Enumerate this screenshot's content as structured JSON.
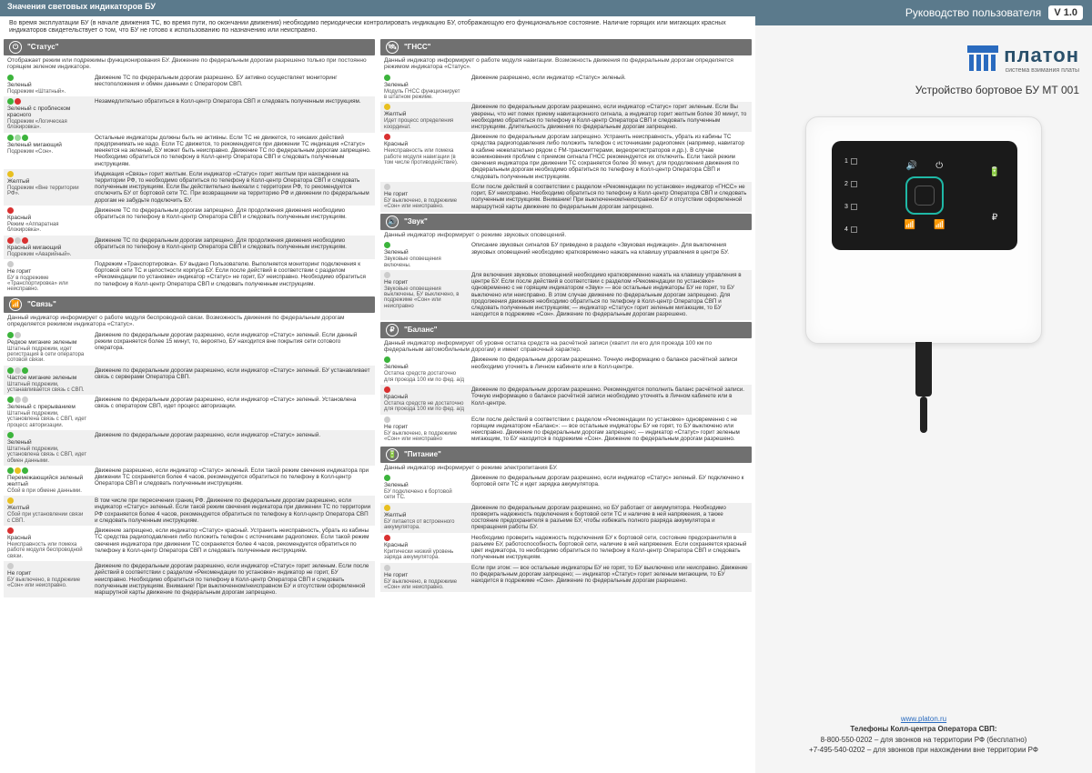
{
  "header": "Значения световых индикаторов БУ",
  "intro": "Во время эксплуатации БУ (в начале движения ТС, во время пути, по окончании движения) необходимо периодически контролировать индикацию БУ, отображающую его функциональное состояние. Наличие горящих или мигающих красных индикаторов свидетельствует о том, что БУ не готово к использованию по назначению или неисправно.",
  "colors": {
    "green": "#3cb43c",
    "red": "#d93030",
    "yellow": "#e8c020",
    "off": "#cccccc",
    "orange": "#e88b20",
    "hdr_bg": "#707070",
    "top_bg": "#5b7a8c"
  },
  "sections_col1": [
    {
      "icon": "⏻",
      "title": "\"Статус\"",
      "intro": "Отображает режим или подрежимы функционирования БУ. Движение по федеральным дорогам разрешено только при постоянно горящем зеленом индикаторе.",
      "rows": [
        {
          "dots": [
            "c-green"
          ],
          "label": "Зеленый",
          "sub": "Подрежим «Штатный».",
          "desc": "Движение ТС по федеральным дорогам разрешено. БУ активно осуществляет мониторинг местоположения и обмен данными с Оператором СВП."
        },
        {
          "dots": [
            "c-green",
            "c-red"
          ],
          "label": "Зеленый с проблеском красного",
          "sub": "Подрежим «Логическая блокировка».",
          "desc": "Незамедлительно обратиться в Колл-центр Оператора СВП и следовать полученным инструкциям.",
          "alt": true
        },
        {
          "dots": [
            "c-green",
            "c-greenb",
            "c-green"
          ],
          "label": "Зеленый мигающий",
          "sub": "Подрежим «Сон».",
          "desc": "Остальные индикаторы должны быть не активны. Если ТС не движется, то никаких действий предпринимать не надо. Если ТС движется, то рекомендуется при движении ТС индикация «Статус» меняется на зеленый, БУ может быть неисправно. Движение ТС по федеральным дорогам запрещено. Необходимо обратиться по телефону в Колл-центр Оператора СВП и следовать полученным инструкциям."
        },
        {
          "dots": [
            "c-yellow"
          ],
          "label": "Желтый",
          "sub": "Подрежим «Вне территории РФ».",
          "desc": "Индикация «Связь» горит желтым. Если индикатор «Статус» горит желтым при нахождении на территории РФ, то необходимо обратиться по телефону в Колл-центр Оператора СВП и следовать полученным инструкциям. Если Вы действительно выехали с территории РФ, то рекомендуется отключить БУ от бортовой сети ТС. При возвращении на территорию РФ и движении по федеральным дорогам не забудьте подключить БУ.",
          "alt": true
        },
        {
          "dots": [
            "c-red"
          ],
          "label": "Красный",
          "sub": "Режим «Аппаратная блокировка».",
          "desc": "Движение ТС по федеральным дорогам запрещено. Для продолжения движения необходимо обратиться по телефону в Колл-центр Оператора СВП и следовать полученным инструкциям."
        },
        {
          "dots": [
            "c-red",
            "c-off",
            "c-red"
          ],
          "label": "Красный мигающий",
          "sub": "Подрежим «Аварийный».",
          "desc": "Движение ТС по федеральным дорогам запрещено. Для продолжения движения необходимо обратиться по телефону в Колл-центр Оператора СВП и следовать полученным инструкциям.",
          "alt": true
        },
        {
          "dots": [
            "c-off"
          ],
          "label": "Не горит",
          "sub": "БУ в подрежиме «Транспортировка» или неисправно.",
          "desc": "Подрежим «Транспортировка». БУ выдано Пользователю. Выполняется мониторинг подключения к бортовой сети ТС и целостности корпуса БУ. Если после действий в соответствии с разделом «Рекомендации по установке» индикатор «Статус» не горит, БУ неисправно. Необходимо обратиться по телефону в Колл-центр Оператора СВП и следовать полученным инструкциям."
        }
      ]
    },
    {
      "icon": "📶",
      "title": "\"Связь\"",
      "intro": "Данный индикатор информирует о работе модуля беспроводной связи. Возможность движения по федеральным дорогам определяется режимом индикатора «Статус».",
      "rows": [
        {
          "dots": [
            "c-green",
            "c-off"
          ],
          "label": "Редкое мигание зеленым",
          "sub": "Штатный подрежим, идет регистрация в сети оператора сотовой связи.",
          "desc": "Движение по федеральным дорогам разрешено, если индикатор «Статус» зеленый. Если данный режим сохраняется более 15 минут, то, вероятно, БУ находится вне покрытия сети сотового оператора."
        },
        {
          "dots": [
            "c-green",
            "c-off",
            "c-green"
          ],
          "label": "Частое мигание зеленым",
          "sub": "Штатный подрежим, устанавливается связь с СВП.",
          "desc": "Движение по федеральным дорогам разрешено, если индикатор «Статус» зеленый. БУ устанавливает связь с серверами Оператора СВП.",
          "alt": true
        },
        {
          "dots": [
            "c-green",
            "c-off",
            "c-off"
          ],
          "label": "Зеленый с прерыванием",
          "sub": "Штатный подрежим, установлена связь с СВП, идет процесс авторизации.",
          "desc": "Движение по федеральным дорогам разрешено, если индикатор «Статус» зеленый. Установлена связь с оператором СВП, идет процесс авторизации."
        },
        {
          "dots": [
            "c-green"
          ],
          "label": "Зеленый",
          "sub": "Штатный подрежим, установлена связь с СВП, идет обмен данными.",
          "desc": "Движение по федеральным дорогам разрешено, если индикатор «Статус» зеленый.",
          "alt": true
        },
        {
          "dots": [
            "c-green",
            "c-yellow",
            "c-green"
          ],
          "label": "Перемежающийся зеленый желтый",
          "sub": "Сбой в при обмене данными.",
          "desc": "Движение разрешено, если индикатор «Статус» зеленый. Если такой режим свечения индикатора при движении ТС сохраняется более 4 часов, рекомендуется обратиться по телефону в Колл-центр Оператора СВП и следовать полученным инструкциям."
        },
        {
          "dots": [
            "c-yellow"
          ],
          "label": "Желтый",
          "sub": "Сбой при установлении связи с СВП.",
          "desc": "В том числе при пересечении границ РФ. Движение по федеральным дорогам разрешено, если индикатор «Статус» зеленый. Если такой режим свечения индикатора при движении ТС по территории РФ сохраняется более 4 часов, рекомендуется обратиться по телефону в Колл-центр Оператора СВП и следовать полученным инструкциям.",
          "alt": true
        },
        {
          "dots": [
            "c-red"
          ],
          "label": "Красный",
          "sub": "Неисправность или помеха работе модуля беспроводной связи.",
          "desc": "Движение запрещено, если индикатор «Статус» красный. Устранить неисправность, убрать из кабины ТС средства радиоподавления либо положить телефон с источниками радиопомех. Если такой режим свечения индикатора при движении ТС сохраняется более 4 часов, рекомендуется обратиться по телефону в Колл-центр Оператора СВП и следовать полученным инструкциям."
        },
        {
          "dots": [
            "c-off"
          ],
          "label": "Не горит",
          "sub": "БУ выключено, в подрежиме «Сон» или неисправно.",
          "desc": "Движение по федеральным дорогам разрешено, если индикатор «Статус» горит зеленым. Если после действий в соответствии с разделом «Рекомендации по установке» индикатор не горит, БУ неисправно. Необходимо обратиться по телефону в Колл-центр Оператора СВП и следовать полученным инструкциям. Внимание! При выключенном/неисправном БУ и отсутствии оформленной маршрутной карты движение по федеральным дорогам запрещено.",
          "alt": true
        }
      ]
    }
  ],
  "sections_col2": [
    {
      "icon": "🛰",
      "title": "\"ГНСС\"",
      "intro": "Данный индикатор информирует о работе модуля навигации. Возможность движения по федеральным дорогам определяется режимом индикатора «Статус».",
      "rows": [
        {
          "dots": [
            "c-green"
          ],
          "label": "Зеленый",
          "sub": "Модуль ГНСС функционирует в штатном режиме.",
          "desc": "Движение разрешено, если индикатор «Статус» зеленый."
        },
        {
          "dots": [
            "c-yellow"
          ],
          "label": "Желтый",
          "sub": "Идет процесс определения координат.",
          "desc": "Движение по федеральным дорогам разрешено, если индикатор «Статус» горит зеленым. Если Вы уверены, что нет помех приему навигационного сигнала, а индикатор горит желтым более 30 минут, то необходимо обратиться по телефону в Колл-центр Оператора СВП и следовать полученным инструкциям. Длительность движения по федеральным дорогам запрещено.",
          "alt": true
        },
        {
          "dots": [
            "c-red"
          ],
          "label": "Красный",
          "sub": "Неисправность или помеха работе модуля навигации (в том числе противодействие).",
          "desc": "Движение по федеральным дорогам запрещено. Устранить неисправность, убрать из кабины ТС средства радиоподавления либо положить телефон с источниками радиопомех (например, навигатор в кабине нежелательно рядом с FM-трансмиттерами, видеорегистраторов и др.). В случае возникновения проблем с приемом сигнала ГНСС рекомендуется их отключить. Если такой режим свечения индикатора при движении ТС сохраняется более 30 минут, для продолжения движения по федеральным дорогам необходимо обратиться по телефону в Колл-центр Оператора СВП и следовать полученным инструкциям."
        },
        {
          "dots": [
            "c-off"
          ],
          "label": "Не горит",
          "sub": "БУ выключено, в подрежиме «Сон» или неисправно.",
          "desc": "Если после действий в соответствии с разделом «Рекомендации по установке» индикатор «ГНСС» не горит, БУ неисправно. Необходимо обратиться по телефону в Колл-центр Оператора СВП и следовать полученным инструкциям. Внимание! При выключенном/неисправном БУ и отсутствии оформленной маршрутной карты движение по федеральным дорогам запрещено.",
          "alt": true
        }
      ]
    },
    {
      "icon": "🔊",
      "title": "\"Звук\"",
      "intro": "Данный индикатор информирует о режиме звуковых оповещений.",
      "rows": [
        {
          "dots": [
            "c-green"
          ],
          "label": "Зеленый",
          "sub": "Звуковые оповещения включены.",
          "desc": "Описание звуковых сигналов БУ приведено в разделе «Звуковая индикация». Для выключения звуковых оповещений необходимо кратковременно нажать на клавишу управления в центре БУ."
        },
        {
          "dots": [
            "c-off"
          ],
          "label": "Не горит",
          "sub": "Звуковые оповещения выключены, БУ выключено, в подрежиме «Сон» или неисправно",
          "desc": "Для включения звуковых оповещений необходимо кратковременно нажать на клавишу управления в центре БУ. Если после действий в соответствии с разделом «Рекомендации по установке» одновременно с не горящим индикатором «Звук» — все остальные индикаторы БУ не горят, то БУ выключено или неисправно. В этом случае движение по федеральным дорогам запрещено. Для продолжения движения необходимо обратиться по телефону в Колл-центр Оператора СВП и следовать полученным инструкциям; — индикатор «Статус» горит зеленым мигающим, то БУ находится в подрежиме «Сон». Движение по федеральным дорогам разрешено.",
          "alt": true
        }
      ]
    },
    {
      "icon": "₽",
      "title": "\"Баланс\"",
      "intro": "Данный индикатор информирует об уровне остатка средств на расчётной записи (хватит ли его для проезда 100 км по федеральным автомобильным дорогам) и имеет справочный характер.",
      "rows": [
        {
          "dots": [
            "c-green"
          ],
          "label": "Зеленый",
          "sub": "Остатка средств достаточно для проезда 100 км по фед. а/д",
          "desc": "Движение по федеральным дорогам разрешено. Точную информацию о балансе расчётной записи необходимо уточнять в Личном кабинете или в Колл-центре."
        },
        {
          "dots": [
            "c-red"
          ],
          "label": "Красный",
          "sub": "Остатка средств не достаточно для проезда 100 км по фед. а/д",
          "desc": "Движение по федеральным дорогам разрешено. Рекомендуется пополнить баланс расчётной записи. Точную информацию о балансе расчётной записи необходимо уточнять в Личном кабинете или в Колл-центре.",
          "alt": true
        },
        {
          "dots": [
            "c-off"
          ],
          "label": "Не горит",
          "sub": "БУ выключено, в подрежиме «Сон» или неисправно",
          "desc": "Если после действий в соответствии с разделом «Рекомендации по установке» одновременно с не горящим индикатором «Баланс»: — все остальные индикаторы БУ не горят, то БУ выключено или неисправно. Движение по федеральным дорогам запрещено; — индикатор «Статус» горит зеленым мигающим, то БУ находится в подрежиме «Сон». Движение по федеральным дорогам разрешено."
        }
      ]
    },
    {
      "icon": "🔋",
      "title": "\"Питание\"",
      "intro": "Данный индикатор информирует о режиме электропитания БУ.",
      "rows": [
        {
          "dots": [
            "c-green"
          ],
          "label": "Зеленый",
          "sub": "БУ подключено к бортовой сети ТС.",
          "desc": "Движение по федеральным дорогам разрешено, если индикатор «Статус» зеленый. БУ подключено к бортовой сети ТС и идет зарядка аккумулятора."
        },
        {
          "dots": [
            "c-yellow"
          ],
          "label": "Желтый",
          "sub": "БУ питается от встроенного аккумулятора.",
          "desc": "Движение по федеральным дорогам разрешено, но БУ работает от аккумулятора. Необходимо проверить надежность подключения к бортовой сети ТС и наличие в ней напряжения, а также состояние предохранителя в разъеме БУ, чтобы избежать полного разряда аккумулятора и прекращения работы БУ.",
          "alt": true
        },
        {
          "dots": [
            "c-red"
          ],
          "label": "Красный",
          "sub": "Критически низкий уровень заряда аккумулятора.",
          "desc": "Необходимо проверить надежность подключения БУ к бортовой сети, состояние предохранителя в разъеме БУ, работоспособность бортовой сети, наличие в ней напряжения. Если сохраняется красный цвет индикатора, то необходимо обратиться по телефону в Колл-центр Оператора СВП и следовать полученным инструкциям."
        },
        {
          "dots": [
            "c-off"
          ],
          "label": "Не горит",
          "sub": "БУ выключено, в подрежиме «Сон» или неисправно.",
          "desc": "Если при этом: — все остальные индикаторы БУ не горят, то БУ выключено или неисправно. Движение по федеральным дорогам запрещено; — индикатор «Статус» горит зеленым мигающим, то БУ находится в подрежиме «Сон». Движение по федеральным дорогам разрешено.",
          "alt": true
        }
      ]
    }
  ],
  "right": {
    "header_title": "Руководство пользователя",
    "version": "V 1.0",
    "logo_text": "платон",
    "logo_sub": "система взимания платы",
    "device_title": "Устройство бортовое БУ МТ 001",
    "footer_url": "www.platon.ru",
    "footer_label": "Телефоны Колл-центра Оператора СВП:",
    "footer_phone1": "8-800-550-0202 – для звонков на территории РФ (бесплатно)",
    "footer_phone2": "+7-495-540-0202 – для звонков при нахождении вне территории РФ"
  }
}
